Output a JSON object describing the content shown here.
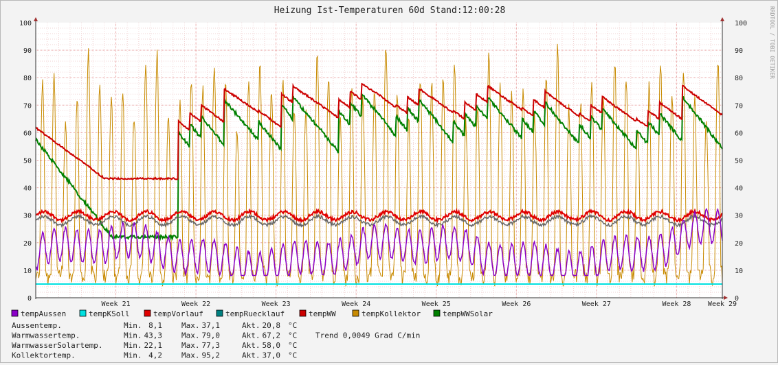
{
  "chart_data": {
    "type": "line",
    "title": "Heizung Ist-Temperaturen 60d Stand:12:00:28",
    "watermark": "RRDTOOL / TOBI OETIKER",
    "xlabel": "",
    "ylabel": "",
    "ylim": [
      0,
      100
    ],
    "y_ticks": [
      0,
      10,
      20,
      30,
      40,
      50,
      60,
      70,
      80,
      90,
      100
    ],
    "y_tick_labels": [
      "0",
      "10",
      "20",
      "30",
      "40",
      "50",
      "60",
      "70",
      "80",
      "90",
      "100"
    ],
    "x_range_days": [
      0,
      60
    ],
    "x_ticks": [
      {
        "day": 7,
        "label": "Week 21"
      },
      {
        "day": 14,
        "label": "Week 22"
      },
      {
        "day": 21,
        "label": "Week 23"
      },
      {
        "day": 28,
        "label": "Week 24"
      },
      {
        "day": 35,
        "label": "Week 25"
      },
      {
        "day": 42,
        "label": "Week 26"
      },
      {
        "day": 49,
        "label": "Week 27"
      },
      {
        "day": 56,
        "label": "Week 28"
      },
      {
        "day": 60,
        "label": "Week 29"
      }
    ],
    "grid": true,
    "legend_placement": "bottom",
    "series": [
      {
        "name": "tempAussen",
        "color": "#8a00c8"
      },
      {
        "name": "tempKSoll",
        "color": "#00e0e0",
        "constant": 5
      },
      {
        "name": "tempVorlauf",
        "color": "#e00000"
      },
      {
        "name": "tempRuecklauf",
        "color": "#008080"
      },
      {
        "name": "tempWW",
        "color": "#cc0000"
      },
      {
        "name": "tempKollektor",
        "color": "#c88a00"
      },
      {
        "name": "tempWWSolar",
        "color": "#008000"
      }
    ],
    "stats": [
      {
        "label": "Aussentemp.",
        "min_label": "Min.",
        "min": "8,1",
        "max_label": "Max.",
        "max": "37,1",
        "akt_label": "Akt.",
        "akt": "20,8",
        "unit": "°C",
        "extra": ""
      },
      {
        "label": "Warmwassertemp.",
        "min_label": "Min.",
        "min": "43,3",
        "max_label": "Max.",
        "max": "79,0",
        "akt_label": "Akt.",
        "akt": "67,2",
        "unit": "°C",
        "extra": "Trend 0,0049 Grad C/min"
      },
      {
        "label": "WarmwasserSolartemp.",
        "min_label": "Min.",
        "min": "22,1",
        "max_label": "Max.",
        "max": "77,3",
        "akt_label": "Akt.",
        "akt": "58,0",
        "unit": "°C",
        "extra": ""
      },
      {
        "label": "Kollektortemp.",
        "min_label": "Min.",
        "min": "4,2",
        "max_label": "Max.",
        "max": "95,2",
        "akt_label": "Akt.",
        "akt": "37,0",
        "unit": "°C",
        "extra": ""
      }
    ]
  }
}
